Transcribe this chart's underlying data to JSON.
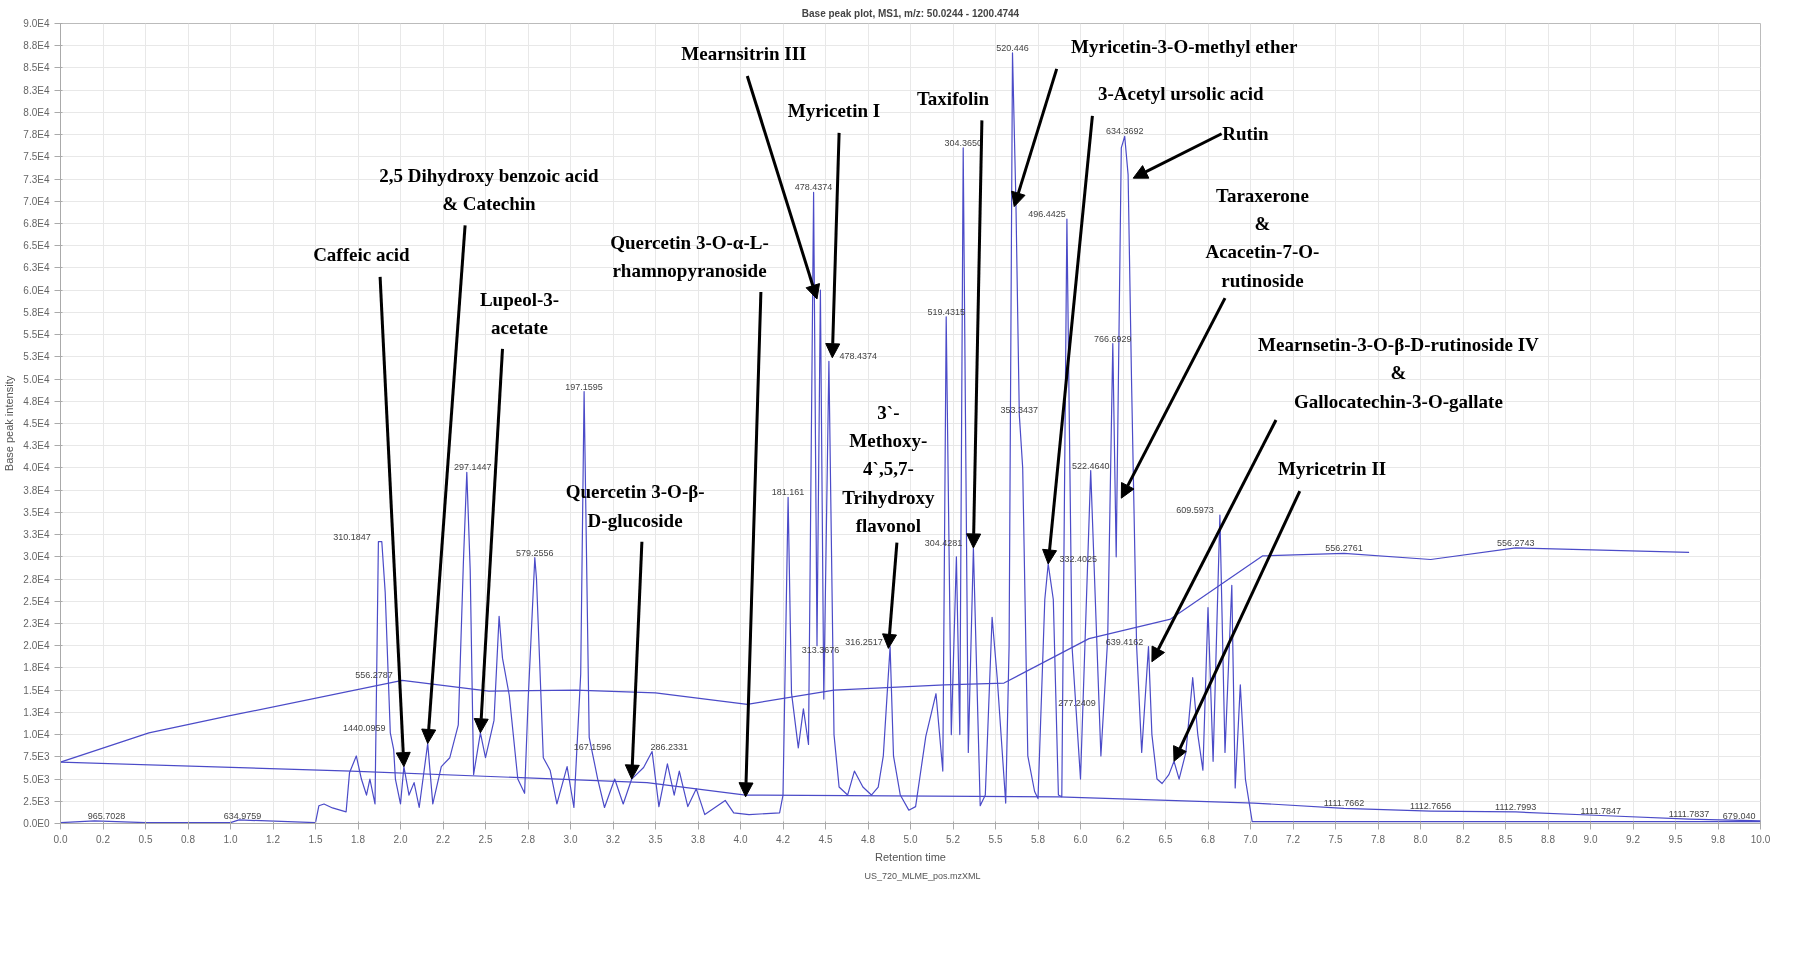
{
  "chart_data": {
    "type": "line",
    "title": "Base peak plot, MS1, m/z: 50.0244 - 1200.4744",
    "xlabel": "Retention time",
    "ylabel": "Base peak intensity",
    "xlim": [
      0,
      10
    ],
    "ylim": [
      0,
      90000
    ],
    "xticks": [
      {
        "value": 0,
        "label": "0.0"
      },
      {
        "value": 0.25,
        "label": "0.2"
      },
      {
        "value": 0.5,
        "label": "0.5"
      },
      {
        "value": 0.75,
        "label": "0.8"
      },
      {
        "value": 1,
        "label": "1.0"
      },
      {
        "value": 1.25,
        "label": "1.2"
      },
      {
        "value": 1.5,
        "label": "1.5"
      },
      {
        "value": 1.75,
        "label": "1.8"
      },
      {
        "value": 2,
        "label": "2.0"
      },
      {
        "value": 2.25,
        "label": "2.2"
      },
      {
        "value": 2.5,
        "label": "2.5"
      },
      {
        "value": 2.75,
        "label": "2.8"
      },
      {
        "value": 3,
        "label": "3.0"
      },
      {
        "value": 3.25,
        "label": "3.2"
      },
      {
        "value": 3.5,
        "label": "3.5"
      },
      {
        "value": 3.75,
        "label": "3.8"
      },
      {
        "value": 4,
        "label": "4.0"
      },
      {
        "value": 4.25,
        "label": "4.2"
      },
      {
        "value": 4.5,
        "label": "4.5"
      },
      {
        "value": 4.75,
        "label": "4.8"
      },
      {
        "value": 5,
        "label": "5.0"
      },
      {
        "value": 5.25,
        "label": "5.2"
      },
      {
        "value": 5.5,
        "label": "5.5"
      },
      {
        "value": 5.75,
        "label": "5.8"
      },
      {
        "value": 6,
        "label": "6.0"
      },
      {
        "value": 6.25,
        "label": "6.2"
      },
      {
        "value": 6.5,
        "label": "6.5"
      },
      {
        "value": 6.75,
        "label": "6.8"
      },
      {
        "value": 7,
        "label": "7.0"
      },
      {
        "value": 7.25,
        "label": "7.2"
      },
      {
        "value": 7.5,
        "label": "7.5"
      },
      {
        "value": 7.75,
        "label": "7.8"
      },
      {
        "value": 8,
        "label": "8.0"
      },
      {
        "value": 8.25,
        "label": "8.2"
      },
      {
        "value": 8.5,
        "label": "8.5"
      },
      {
        "value": 8.75,
        "label": "8.8"
      },
      {
        "value": 9,
        "label": "9.0"
      },
      {
        "value": 9.25,
        "label": "9.2"
      },
      {
        "value": 9.5,
        "label": "9.5"
      },
      {
        "value": 9.75,
        "label": "9.8"
      },
      {
        "value": 10,
        "label": "10.0"
      }
    ],
    "yticks": [
      {
        "value": 0,
        "label": "0.0E0"
      },
      {
        "value": 2500,
        "label": "2.5E3"
      },
      {
        "value": 5000,
        "label": "5.0E3"
      },
      {
        "value": 7500,
        "label": "7.5E3"
      },
      {
        "value": 10000,
        "label": "1.0E4"
      },
      {
        "value": 12500,
        "label": "1.3E4"
      },
      {
        "value": 15000,
        "label": "1.5E4"
      },
      {
        "value": 17500,
        "label": "1.8E4"
      },
      {
        "value": 20000,
        "label": "2.0E4"
      },
      {
        "value": 22500,
        "label": "2.3E4"
      },
      {
        "value": 25000,
        "label": "2.5E4"
      },
      {
        "value": 27500,
        "label": "2.8E4"
      },
      {
        "value": 30000,
        "label": "3.0E4"
      },
      {
        "value": 32500,
        "label": "3.3E4"
      },
      {
        "value": 35000,
        "label": "3.5E4"
      },
      {
        "value": 37500,
        "label": "3.8E4"
      },
      {
        "value": 40000,
        "label": "4.0E4"
      },
      {
        "value": 42500,
        "label": "4.3E4"
      },
      {
        "value": 45000,
        "label": "4.5E4"
      },
      {
        "value": 47500,
        "label": "4.8E4"
      },
      {
        "value": 50000,
        "label": "5.0E4"
      },
      {
        "value": 52500,
        "label": "5.3E4"
      },
      {
        "value": 55000,
        "label": "5.5E4"
      },
      {
        "value": 57500,
        "label": "5.8E4"
      },
      {
        "value": 60000,
        "label": "6.0E4"
      },
      {
        "value": 62500,
        "label": "6.3E4"
      },
      {
        "value": 65000,
        "label": "6.5E4"
      },
      {
        "value": 67500,
        "label": "6.8E4"
      },
      {
        "value": 70000,
        "label": "7.0E4"
      },
      {
        "value": 72500,
        "label": "7.3E4"
      },
      {
        "value": 75000,
        "label": "7.5E4"
      },
      {
        "value": 77500,
        "label": "7.8E4"
      },
      {
        "value": 80000,
        "label": "8.0E4"
      },
      {
        "value": 82500,
        "label": "8.3E4"
      },
      {
        "value": 85000,
        "label": "8.5E4"
      },
      {
        "value": 87500,
        "label": "8.8E4"
      },
      {
        "value": 90000,
        "label": "9.0E4"
      }
    ],
    "grid": true,
    "legend": "bottom",
    "series": [
      {
        "name": "US_720_MLME_pos.mzXML",
        "color": "#4b4bc8",
        "x": [
          0,
          0.2,
          0.5,
          1.0,
          1.05,
          1.5,
          1.52,
          1.55,
          1.6,
          1.68,
          1.7,
          1.74,
          1.77,
          1.8,
          1.82,
          1.85,
          1.87,
          1.89,
          1.91,
          1.94,
          1.96,
          1.97,
          2.0,
          2.02,
          2.05,
          2.08,
          2.11,
          2.16,
          2.19,
          2.24,
          2.29,
          2.34,
          2.37,
          2.39,
          2.41,
          2.43,
          2.47,
          2.5,
          2.55,
          2.58,
          2.6,
          2.64,
          2.69,
          2.73,
          2.75,
          2.79,
          2.8,
          2.84,
          2.88,
          2.92,
          2.98,
          3.02,
          3.06,
          3.08,
          3.11,
          3.16,
          3.2,
          3.26,
          3.31,
          3.36,
          3.43,
          3.48,
          3.52,
          3.57,
          3.61,
          3.64,
          3.69,
          3.74,
          3.79,
          3.91,
          3.96,
          4.05,
          4.23,
          4.25,
          4.28,
          4.3,
          4.34,
          4.37,
          4.4,
          4.43,
          4.45,
          4.47,
          4.49,
          4.52,
          4.55,
          4.58,
          4.63,
          4.67,
          4.72,
          4.77,
          4.81,
          4.84,
          4.88,
          4.9,
          4.94,
          4.99,
          5.03,
          5.09,
          5.15,
          5.19,
          5.21,
          5.24,
          5.27,
          5.29,
          5.31,
          5.34,
          5.37,
          5.41,
          5.44,
          5.48,
          5.51,
          5.56,
          5.58,
          5.6,
          5.62,
          5.64,
          5.66,
          5.69,
          5.73,
          5.75,
          5.79,
          5.81,
          5.84,
          5.87,
          5.89,
          5.92,
          5.95,
          6.0,
          6.06,
          6.12,
          6.16,
          6.19,
          6.21,
          6.24,
          6.26,
          6.28,
          6.3,
          6.33,
          6.36,
          6.4,
          6.42,
          6.45,
          6.48,
          6.52,
          6.55,
          6.58,
          6.62,
          6.66,
          6.69,
          6.72,
          6.75,
          6.78,
          6.82,
          6.85,
          6.89,
          6.91,
          6.94,
          6.97,
          7.01,
          8.0,
          10.0
        ],
        "values": [
          100,
          300,
          100,
          100,
          400,
          100,
          2000,
          2200,
          1750,
          1300,
          5700,
          7600,
          5000,
          3200,
          5000,
          2200,
          31700,
          31700,
          26000,
          10200,
          8300,
          5000,
          2200,
          6400,
          3200,
          4600,
          1800,
          9000,
          2200,
          6400,
          7400,
          11100,
          29400,
          39500,
          28500,
          5500,
          10200,
          7400,
          11600,
          23300,
          18600,
          14400,
          5000,
          3400,
          13500,
          29900,
          27500,
          7400,
          6000,
          2200,
          6400,
          1800,
          16800,
          48600,
          9700,
          5000,
          1800,
          5000,
          2200,
          5000,
          6300,
          8100,
          1900,
          6700,
          3200,
          5900,
          1900,
          3900,
          1000,
          2600,
          1200,
          1000,
          1200,
          3200,
          36700,
          14700,
          8500,
          12900,
          8900,
          71000,
          20000,
          60000,
          14000,
          52000,
          10000,
          4100,
          3200,
          5900,
          4100,
          3200,
          4100,
          7600,
          19900,
          7600,
          3200,
          1500,
          1900,
          9800,
          14600,
          5900,
          57000,
          10000,
          30000,
          10000,
          76000,
          8000,
          31000,
          2000,
          3200,
          23200,
          16400,
          2300,
          20000,
          86700,
          70000,
          46000,
          40000,
          7600,
          3600,
          2800,
          25200,
          29200,
          25200,
          3200,
          3000,
          68000,
          20000,
          5000,
          39700,
          7600,
          20800,
          54000,
          30000,
          76000,
          77300,
          73000,
          50000,
          20000,
          8000,
          19900,
          10000,
          5000,
          4500,
          5500,
          7000,
          5000,
          8000,
          16400,
          10000,
          6000,
          24300,
          7000,
          34700,
          8000,
          26800,
          4000,
          15600,
          5000,
          200,
          200,
          200
        ]
      },
      {
        "color": "#4b4bc8",
        "x": [
          0,
          0.52,
          0.99,
          2.01,
          2.52,
          3.03,
          3.5,
          4.04,
          4.55,
          5.2,
          5.55,
          6.05,
          6.53,
          7.07,
          7.55,
          8.06,
          8.56,
          9.58
        ],
        "values": [
          6900,
          10200,
          12100,
          16100,
          14900,
          15000,
          14700,
          13400,
          15000,
          15600,
          15800,
          20800,
          23000,
          30100,
          30400,
          29700,
          31000,
          30500
        ]
      },
      {
        "color": "#4b4bc8",
        "x": [
          0,
          1.71,
          3.45,
          4.03,
          5.87,
          7.02,
          7.55,
          8.06,
          8.56,
          9.06,
          9.58,
          10.0
        ],
        "values": [
          6900,
          5900,
          4600,
          3200,
          3000,
          2300,
          1700,
          1400,
          1300,
          900,
          500,
          300
        ]
      }
    ],
    "annotations": [
      {
        "text": "Caffeic acid",
        "x": 2.02,
        "y": 6400
      },
      {
        "text": "2,5 Dihydroxy benzoic acid\n& Catechin",
        "x": 2.16,
        "y": 9000
      },
      {
        "text": "Lupeol-3-\nacetate",
        "x": 2.47,
        "y": 10200
      },
      {
        "text": "Quercetin 3-O-β-\nD-glucoside",
        "x": 3.36,
        "y": 5000
      },
      {
        "text": "Quercetin 3-O-α-L-\nrhamnopyranoside",
        "x": 4.03,
        "y": 3000
      },
      {
        "text": "Mearnsitrin III",
        "x": 4.45,
        "y": 59000
      },
      {
        "text": "Myricetin I",
        "x": 4.54,
        "y": 52400
      },
      {
        "text": "3`-\nMethoxy-\n4`,5,7-\nTrihydroxy\nflavonol",
        "x": 4.87,
        "y": 19700
      },
      {
        "text": "Taxifolin",
        "x": 5.37,
        "y": 31000
      },
      {
        "text": "Myricetin-3-O-methyl ether",
        "x": 5.61,
        "y": 69400
      },
      {
        "text": "3-Acetyl ursolic acid",
        "x": 5.81,
        "y": 29200
      },
      {
        "text": "Rutin",
        "x": 6.31,
        "y": 72600
      },
      {
        "text": "Taraxerone\n&\nAcacetin-7-O-\nrutinoside",
        "x": 6.24,
        "y": 36600
      },
      {
        "text": "Mearnsetin-3-O-β-D-rutinoside IV\n&\nGallocatechin-3-O-gallate",
        "x": 6.42,
        "y": 18200
      },
      {
        "text": "Myricetrin II",
        "x": 6.55,
        "y": 7000
      },
      {
        "text": "965.7028",
        "x": 0.27,
        "y": 300
      },
      {
        "text": "634.9759",
        "x": 1.07,
        "y": 300
      },
      {
        "text": "310.1847",
        "x": 1.88,
        "y": 31700
      },
      {
        "text": "556.2787",
        "x": 2.02,
        "y": 16100
      },
      {
        "text": "1440.0959",
        "x": 1.94,
        "y": 10200
      },
      {
        "text": "297.1447",
        "x": 2.39,
        "y": 39500
      },
      {
        "text": "579.2556",
        "x": 2.79,
        "y": 29900
      },
      {
        "text": "197.1595",
        "x": 3.08,
        "y": 48600
      },
      {
        "text": "167.1596",
        "x": 3.13,
        "y": 8000
      },
      {
        "text": "286.2331",
        "x": 3.44,
        "y": 8000
      },
      {
        "text": "181.161",
        "x": 4.28,
        "y": 36700
      },
      {
        "text": "478.4374",
        "x": 4.43,
        "y": 71000
      },
      {
        "text": "313.3676",
        "x": 4.47,
        "y": 19000
      },
      {
        "text": "478.4374",
        "x": 4.54,
        "y": 52000
      },
      {
        "text": "316.2517",
        "x": 4.88,
        "y": 19900
      },
      {
        "text": "519.4315",
        "x": 5.21,
        "y": 57000
      },
      {
        "text": "304.3650",
        "x": 5.31,
        "y": 76000
      },
      {
        "text": "304.4281",
        "x": 5.37,
        "y": 31000
      },
      {
        "text": "520.446",
        "x": 5.6,
        "y": 86700
      },
      {
        "text": "353.3437",
        "x": 5.64,
        "y": 46000
      },
      {
        "text": "332.4025",
        "x": 5.81,
        "y": 29200
      },
      {
        "text": "496.4425",
        "x": 5.92,
        "y": 68000
      },
      {
        "text": "522.4640",
        "x": 6.06,
        "y": 39700
      },
      {
        "text": "277.2409",
        "x": 5.98,
        "y": 13000
      },
      {
        "text": "766.6929",
        "x": 6.19,
        "y": 54000
      },
      {
        "text": "634.3692",
        "x": 6.26,
        "y": 77300
      },
      {
        "text": "639.4162",
        "x": 6.4,
        "y": 19900
      },
      {
        "text": "609.5973",
        "x": 6.82,
        "y": 34700
      },
      {
        "text": "556.2761",
        "x": 7.55,
        "y": 30400
      },
      {
        "text": "556.2743",
        "x": 8.56,
        "y": 31000
      },
      {
        "text": "1111.7662",
        "x": 7.55,
        "y": 1700
      },
      {
        "text": "1112.7656",
        "x": 8.06,
        "y": 1400
      },
      {
        "text": "1112.7993",
        "x": 8.56,
        "y": 1250
      },
      {
        "text": "1111.7847",
        "x": 9.06,
        "y": 850
      },
      {
        "text": "1111.7837",
        "x": 9.58,
        "y": 500
      },
      {
        "text": "679.040",
        "x": 9.97,
        "y": 300
      }
    ]
  }
}
